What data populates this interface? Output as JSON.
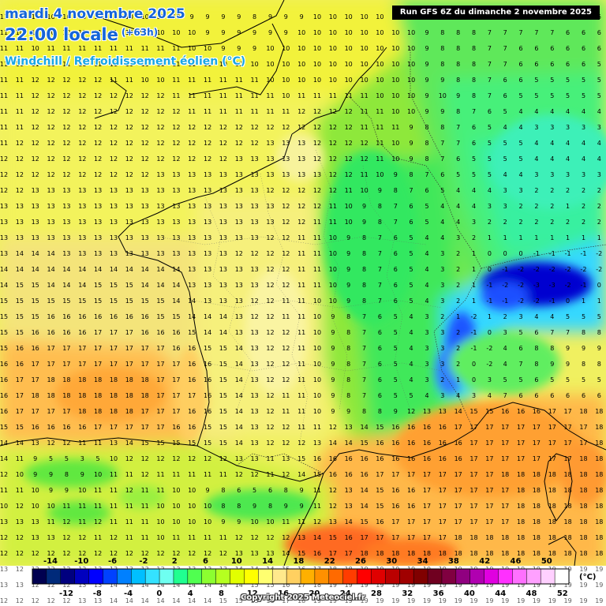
{
  "header": {
    "date": "mardi 4 novembre 2025",
    "time": "22:00 locale",
    "lead": "(+63h)",
    "parameter": "Windchill / Refroidissement éolien (°C)",
    "run": "Run GFS 6Z du dimanche 2 novembre 2025"
  },
  "legend": {
    "colors": [
      "#000050",
      "#002a7a",
      "#00007f",
      "#0000bf",
      "#0000ff",
      "#0041ff",
      "#0080ff",
      "#00bfff",
      "#34e2ff",
      "#6efff0",
      "#20ff90",
      "#50ff50",
      "#8cff30",
      "#b5ff20",
      "#e2ff00",
      "#ffff00",
      "#ffff70",
      "#ffe98c",
      "#ffd060",
      "#ffb000",
      "#ff9000",
      "#ff6a00",
      "#ff3c00",
      "#ff0000",
      "#e00000",
      "#bb0000",
      "#a00000",
      "#800000",
      "#700020",
      "#800040",
      "#900080",
      "#b000b0",
      "#e000e0",
      "#ff30ff",
      "#ff70ff",
      "#ffa0ff",
      "#ffd0ff",
      "#ffffff"
    ],
    "top_labels": [
      "-14",
      "-10",
      "-6",
      "-2",
      "2",
      "6",
      "10",
      "14",
      "18",
      "22",
      "26",
      "30",
      "34",
      "38",
      "42",
      "46",
      "50"
    ],
    "bottom_labels": [
      "-12",
      "-8",
      "-4",
      "0",
      "4",
      "8",
      "12",
      "16",
      "20",
      "24",
      "28",
      "32",
      "36",
      "40",
      "44",
      "48",
      "52"
    ],
    "unit": "(°C)"
  },
  "grid_values": [
    "11 11 10 10 10 10 10 10 10 10 10 10 9 9 9 9 8 9 9 9 10 10 10 10 10 10 10 9 8 8 8 8 7 7 7 7 7 6 6",
    "11 10 10 10 10 11 11 11 10 10 10 10 10 9 9 9 9 9 9 10 10 10 10 10 10 10 10 9 8 8 8 7 7 7 7 7 6 6 6",
    "11 11 10 11 11 11 11 11 11 11 11 11 10 10 9 9 9 10 10 10 10 10 10 10 10 10 10 9 8 8 8 7 7 6 6 6 6 6 6",
    "11 11 11 11 11 11 11 11 11 11 11 11 11 11 10 10 10 10 10 10 10 10 10 10 10 10 10 9 8 8 8 7 7 6 6 6 6 6 5",
    "11 11 12 12 12 12 12 11 11 10 10 11 11 11 11 11 11 10 10 10 10 10 10 10 10 10 10 9 9 8 8 7 6 6 5 5 5 5 5",
    "11 11 12 12 12 12 12 12 12 12 12 11 11 11 11 11 11 11 10 11 11 11 11 11 10 10 10 9 10 9 8 7 6 5 5 5 5 5 5",
    "11 11 12 12 12 12 12 12 12 12 12 12 11 11 11 11 11 11 11 12 12 12 12 11 11 10 10 9 9 8 7 6 5 4 4 4 4 4 4",
    "11 11 12 12 12 12 12 12 12 12 12 12 12 12 12 12 12 12 12 12 12 12 12 11 11 11 9 8 8 7 6 5 4 4 3 3 3 3 3",
    "11 12 12 12 12 12 12 12 12 12 12 12 12 12 12 12 12 13 13 13 12 12 12 12 11 10 9 8 7 7 6 5 5 5 4 4 4 4 4",
    "12 12 12 12 12 12 12 12 12 12 12 12 12 12 12 13 13 13 13 13 12 12 12 12 11 10 9 8 7 6 5 5 5 5 4 4 4 4 4",
    "12 12 12 12 12 12 12 12 12 12 13 13 13 13 13 13 13 13 13 13 13 12 12 11 10 9 8 7 6 5 5 5 4 4 3 3 3 3 3",
    "12 12 13 13 13 13 13 13 13 13 13 13 13 13 13 13 13 12 12 12 12 12 11 10 9 8 7 6 5 4 4 4 3 3 2 2 2 2 2",
    "13 13 13 13 13 13 13 13 13 13 13 13 13 13 13 13 13 13 12 12 12 11 10 9 8 7 6 5 4 4 4 3 3 2 2 2 1 2 2",
    "13 13 13 13 13 13 13 13 13 13 13 13 13 13 13 13 13 13 12 12 11 11 10 9 8 7 6 5 4 4 3 2 2 2 2 2 2 2 2",
    "13 13 13 13 13 13 13 13 13 13 13 13 13 13 13 13 13 12 12 11 11 10 9 8 7 6 5 4 4 3 2 1 1 1 1 1 1 1 1",
    "13 14 14 14 13 13 13 13 13 13 13 13 13 13 13 12 12 12 12 11 11 10 9 8 7 6 5 4 3 2 1 0 0 0 -1 -1 -1 -1 -2",
    "14 14 14 14 14 14 14 14 14 14 14 14 13 13 13 13 13 12 12 11 11 10 9 8 7 6 5 4 3 2 1 0 -1 -2 -2 -2 -2 -2 -2",
    "14 15 15 14 14 14 15 15 15 14 14 14 13 13 13 13 13 12 12 11 11 10 9 8 7 6 5 4 3 2 1 -1 -2 -2 -3 -3 -2 -1 0",
    "15 15 15 15 15 15 15 15 15 15 15 14 14 13 13 13 12 12 11 11 10 10 9 8 7 6 5 4 3 2 1 -1 -1 -2 -2 -1 0 1 1",
    "15 15 15 16 16 16 16 16 16 16 15 15 14 14 14 13 12 12 11 11 10 9 8 7 6 5 4 3 2 1 -2 1 2 3 4 4 5 5 5",
    "15 15 16 16 16 16 17 17 17 16 16 16 15 14 14 13 13 12 12 11 10 9 8 7 6 5 4 3 3 2 -1 0 3 5 6 7 7 8 8",
    "15 16 16 17 17 17 17 17 17 17 17 16 16 15 15 14 13 12 12 11 10 9 8 7 6 5 4 3 3 2 -1 -2 4 6 8 8 9 9 9",
    "16 16 17 17 17 17 17 17 17 17 17 17 16 16 15 14 13 12 12 11 10 9 8 7 6 5 4 3 3 2 0 -2 4 7 8 9 9 8 8",
    "16 17 17 18 18 18 18 18 18 18 17 17 16 16 15 14 13 12 12 11 10 9 8 7 6 5 4 3 2 1 0 3 5 5 6 5 5 5 5",
    "16 17 18 18 18 18 18 18 18 18 17 17 17 16 15 14 13 12 11 11 10 9 8 7 6 5 5 4 3 4 3 4 7 6 6 6 6 6 6",
    "16 17 17 17 17 18 18 18 18 17 17 17 16 16 15 14 13 12 11 11 10 9 9 8 8 9 12 13 13 14 15 15 16 16 16 17 17 18 18",
    "15 15 16 16 16 16 17 17 17 17 17 16 16 15 15 14 13 12 12 11 11 12 13 14 15 16 16 16 16 17 17 17 17 17 17 17 17 17 18",
    "14 14 13 12 12 11 11 13 14 15 15 15 15 15 15 14 13 12 12 12 13 14 14 15 16 16 16 16 16 16 17 17 17 17 17 17 17 17 18",
    "14 11 9 5 5 3 5 10 12 12 12 12 12 12 12 13 13 11 13 15 16 16 16 16 16 16 16 16 16 16 17 17 17 17 17 17 17 18 18",
    "12 10 9 9 8 9 10 11 11 12 11 11 11 11 11 12 12 11 12 14 15 16 16 16 17 17 17 17 17 17 17 17 18 18 18 18 18 18 18",
    "11 11 10 9 9 10 11 11 12 11 11 10 10 9 8 6 5 6 8 9 11 12 13 14 15 16 16 17 17 17 17 17 17 18 18 18 18 18 18",
    "10 12 10 10 11 11 11 11 11 11 10 10 10 10 8 8 9 8 9 9 11 12 13 14 15 16 16 17 17 17 17 17 17 18 18 18 18 18 18",
    "13 13 13 11 12 11 12 11 11 11 10 10 10 10 9 9 10 10 11 11 12 13 14 15 16 17 17 17 17 17 17 17 17 18 18 18 18 18 18",
    "12 12 13 13 12 12 11 12 11 11 10 11 11 11 11 12 12 12 12 13 14 15 16 17 17 17 17 17 17 18 18 18 18 18 18 18 18 18 18",
    "12 12 12 12 12 12 12 12 12 12 12 12 12 12 12 13 13 13 14 15 16 17 17 18 18 18 18 18 18 18 18 18 18 18 18 18 18 18 18",
    "13 12 12 12 12 12 13 13 13 13 13 13 13 13 13 14 14 14 15 16 17 18 18 19 19 19 19 19 19 19 19 19 19 19 19 19 19 19 19",
    "13 13 12 12 12 13 13 14 14 14 14 14 14 14 14 14 15 15 16 17 18 19 19 19 19 19 19 19 19 19 19 19 19 19 19 19 19 19 19",
    "12 12 12 12 12 13 13 14 14 14 14 14 14 14 15 15 15 16 17 18 19 19 19 19 19 19 19 19 19 19 19 19 19 19 19 19 19 19 19"
  ],
  "footer": {
    "copyright": "Copyright 2025 Meteociel.fr"
  }
}
